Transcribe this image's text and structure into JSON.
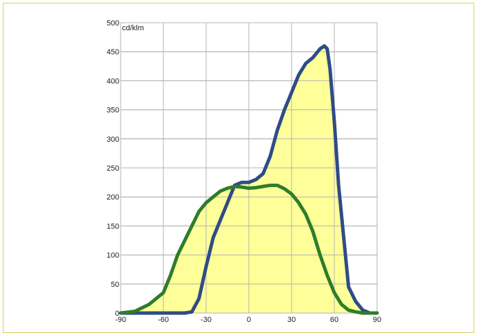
{
  "chart_data": {
    "type": "line",
    "ylabel": "cd/klm",
    "xlabel": "",
    "title": "",
    "xlim": [
      -90,
      90
    ],
    "ylim": [
      0,
      500
    ],
    "x_ticks": [
      -90,
      -60,
      -30,
      0,
      30,
      60,
      90
    ],
    "y_ticks": [
      0,
      50,
      100,
      150,
      200,
      250,
      300,
      350,
      400,
      450,
      500
    ],
    "grid": true,
    "fill_color": "#ffff99",
    "series": [
      {
        "color": "#2e4c86",
        "x": [
          -90,
          -60,
          -45,
          -40,
          -35,
          -30,
          -25,
          -20,
          -15,
          -10,
          -5,
          0,
          5,
          10,
          15,
          20,
          25,
          30,
          35,
          40,
          45,
          50,
          53,
          55,
          57,
          60,
          63,
          67,
          70,
          75,
          80,
          85,
          90
        ],
        "y": [
          0,
          0,
          0,
          2,
          25,
          80,
          130,
          160,
          190,
          220,
          225,
          225,
          230,
          240,
          270,
          315,
          350,
          380,
          410,
          430,
          440,
          455,
          460,
          455,
          420,
          330,
          220,
          120,
          45,
          20,
          5,
          0,
          0
        ]
      },
      {
        "color": "#2e7d2a",
        "x": [
          -90,
          -80,
          -70,
          -60,
          -55,
          -50,
          -45,
          -40,
          -35,
          -30,
          -25,
          -20,
          -15,
          -10,
          -5,
          0,
          5,
          10,
          15,
          20,
          25,
          30,
          35,
          40,
          45,
          50,
          55,
          60,
          65,
          70,
          75,
          80,
          85,
          90
        ],
        "y": [
          0,
          3,
          15,
          35,
          65,
          100,
          125,
          150,
          175,
          190,
          200,
          210,
          215,
          218,
          217,
          215,
          216,
          218,
          220,
          220,
          214,
          205,
          190,
          170,
          140,
          100,
          65,
          35,
          15,
          5,
          2,
          0,
          0,
          0
        ]
      }
    ]
  }
}
